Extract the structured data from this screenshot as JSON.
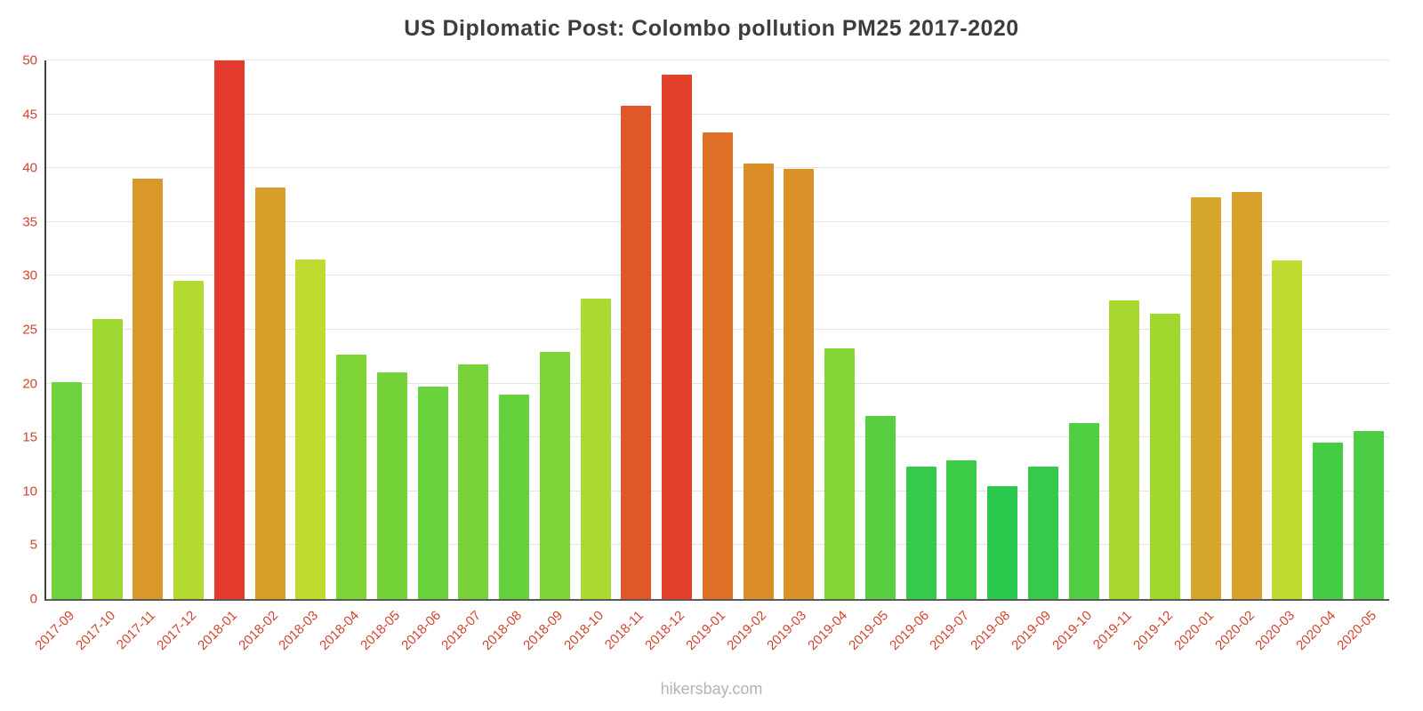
{
  "chart_data": {
    "type": "bar",
    "title": "US Diplomatic Post: Colombo pollution PM25 2017-2020",
    "xlabel": "",
    "ylabel": "",
    "ylim": [
      0,
      50
    ],
    "yticks": [
      0,
      5,
      10,
      15,
      20,
      25,
      30,
      35,
      40,
      45,
      50
    ],
    "grid": true,
    "legend": "none",
    "categories": [
      "2017-09",
      "2017-10",
      "2017-11",
      "2017-12",
      "2018-01",
      "2018-02",
      "2018-03",
      "2018-04",
      "2018-05",
      "2018-06",
      "2018-07",
      "2018-08",
      "2018-09",
      "2018-10",
      "2018-11",
      "2018-12",
      "2019-01",
      "2019-02",
      "2019-03",
      "2019-04",
      "2019-05",
      "2019-06",
      "2019-07",
      "2019-08",
      "2019-09",
      "2019-10",
      "2019-11",
      "2019-12",
      "2020-01",
      "2020-02",
      "2020-03",
      "2020-04",
      "2020-05"
    ],
    "values": [
      20.1,
      26.0,
      39.0,
      29.5,
      50.0,
      38.2,
      31.5,
      22.7,
      21.0,
      19.7,
      21.8,
      19.0,
      22.9,
      27.9,
      45.8,
      48.7,
      43.3,
      40.4,
      39.9,
      23.3,
      17.0,
      12.3,
      12.9,
      10.5,
      12.3,
      16.3,
      27.7,
      26.5,
      37.3,
      37.8,
      31.4,
      14.5,
      15.6
    ],
    "bar_colors": [
      "#6dd23b",
      "#9dd72f",
      "#d99829",
      "#b4da30",
      "#e23b2e",
      "#d89e2a",
      "#bedb31",
      "#7ed435",
      "#73d339",
      "#6ad23c",
      "#78d338",
      "#65d13d",
      "#7fd435",
      "#aad930",
      "#e05728",
      "#e2412b",
      "#dd6f26",
      "#db8d28",
      "#da9128",
      "#82d534",
      "#57cf41",
      "#35ca49",
      "#3acb47",
      "#2bc94e",
      "#35ca49",
      "#52ce42",
      "#a9d930",
      "#a1d82f",
      "#d6a52b",
      "#d7a02a",
      "#bedb31",
      "#45cc45",
      "#4dcd43"
    ]
  },
  "colors": {
    "axis_label": "#d14330",
    "gridline": "#e3e3e3",
    "title": "#3d3d3d",
    "footer": "#b3b3b3"
  },
  "footer": {
    "text": "hikersbay.com"
  }
}
